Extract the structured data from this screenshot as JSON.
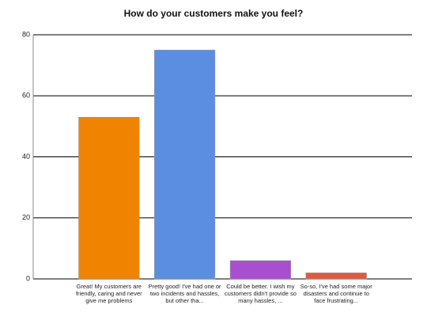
{
  "chart_data": {
    "type": "bar",
    "title": "How do your customers make you feel?",
    "categories": [
      "Great! My customers are friendly, caring and never give me problems",
      "Pretty good! I've had one or two incidents and hassles, but other tha...",
      "Could be better. I wish my customers didn't provide so many hassles, ...",
      "So-so, I've had some major disasters and continue to face frustrating..."
    ],
    "values": [
      53,
      75,
      6,
      2
    ],
    "colors": [
      "#f08400",
      "#5b8ee0",
      "#a84ed0",
      "#e05a40"
    ],
    "ylim": [
      0,
      80
    ],
    "yticks": [
      0,
      20,
      40,
      60,
      80
    ],
    "grid": true
  }
}
